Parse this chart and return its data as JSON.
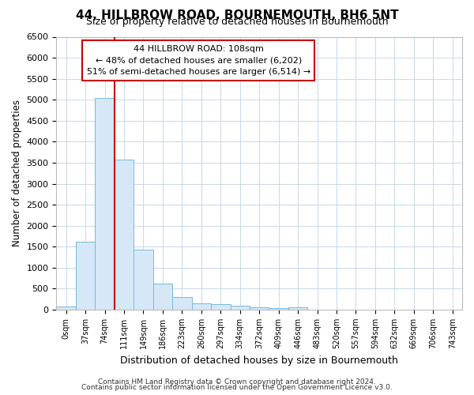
{
  "title1": "44, HILLBROW ROAD, BOURNEMOUTH, BH6 5NT",
  "title2": "Size of property relative to detached houses in Bournemouth",
  "xlabel": "Distribution of detached houses by size in Bournemouth",
  "ylabel": "Number of detached properties",
  "bin_labels": [
    "0sqm",
    "37sqm",
    "74sqm",
    "111sqm",
    "149sqm",
    "186sqm",
    "223sqm",
    "260sqm",
    "297sqm",
    "334sqm",
    "372sqm",
    "409sqm",
    "446sqm",
    "483sqm",
    "520sqm",
    "557sqm",
    "594sqm",
    "632sqm",
    "669sqm",
    "706sqm",
    "743sqm"
  ],
  "bar_heights": [
    75,
    1620,
    5050,
    3570,
    1420,
    615,
    305,
    155,
    130,
    95,
    50,
    40,
    60,
    0,
    0,
    0,
    0,
    0,
    0,
    0,
    0
  ],
  "bar_color": "#d6e8f7",
  "bar_edge_color": "#7ab8d9",
  "vline_x": 3.0,
  "vline_color": "#cc0000",
  "ylim": [
    0,
    6500
  ],
  "yticks": [
    0,
    500,
    1000,
    1500,
    2000,
    2500,
    3000,
    3500,
    4000,
    4500,
    5000,
    5500,
    6000,
    6500
  ],
  "annotation_text1": "44 HILLBROW ROAD: 108sqm",
  "annotation_text2": "← 48% of detached houses are smaller (6,202)",
  "annotation_text3": "51% of semi-detached houses are larger (6,514) →",
  "footer1": "Contains HM Land Registry data © Crown copyright and database right 2024.",
  "footer2": "Contains public sector information licensed under the Open Government Licence v3.0.",
  "grid_color": "#c8d8ea",
  "background_color": "#ffffff"
}
